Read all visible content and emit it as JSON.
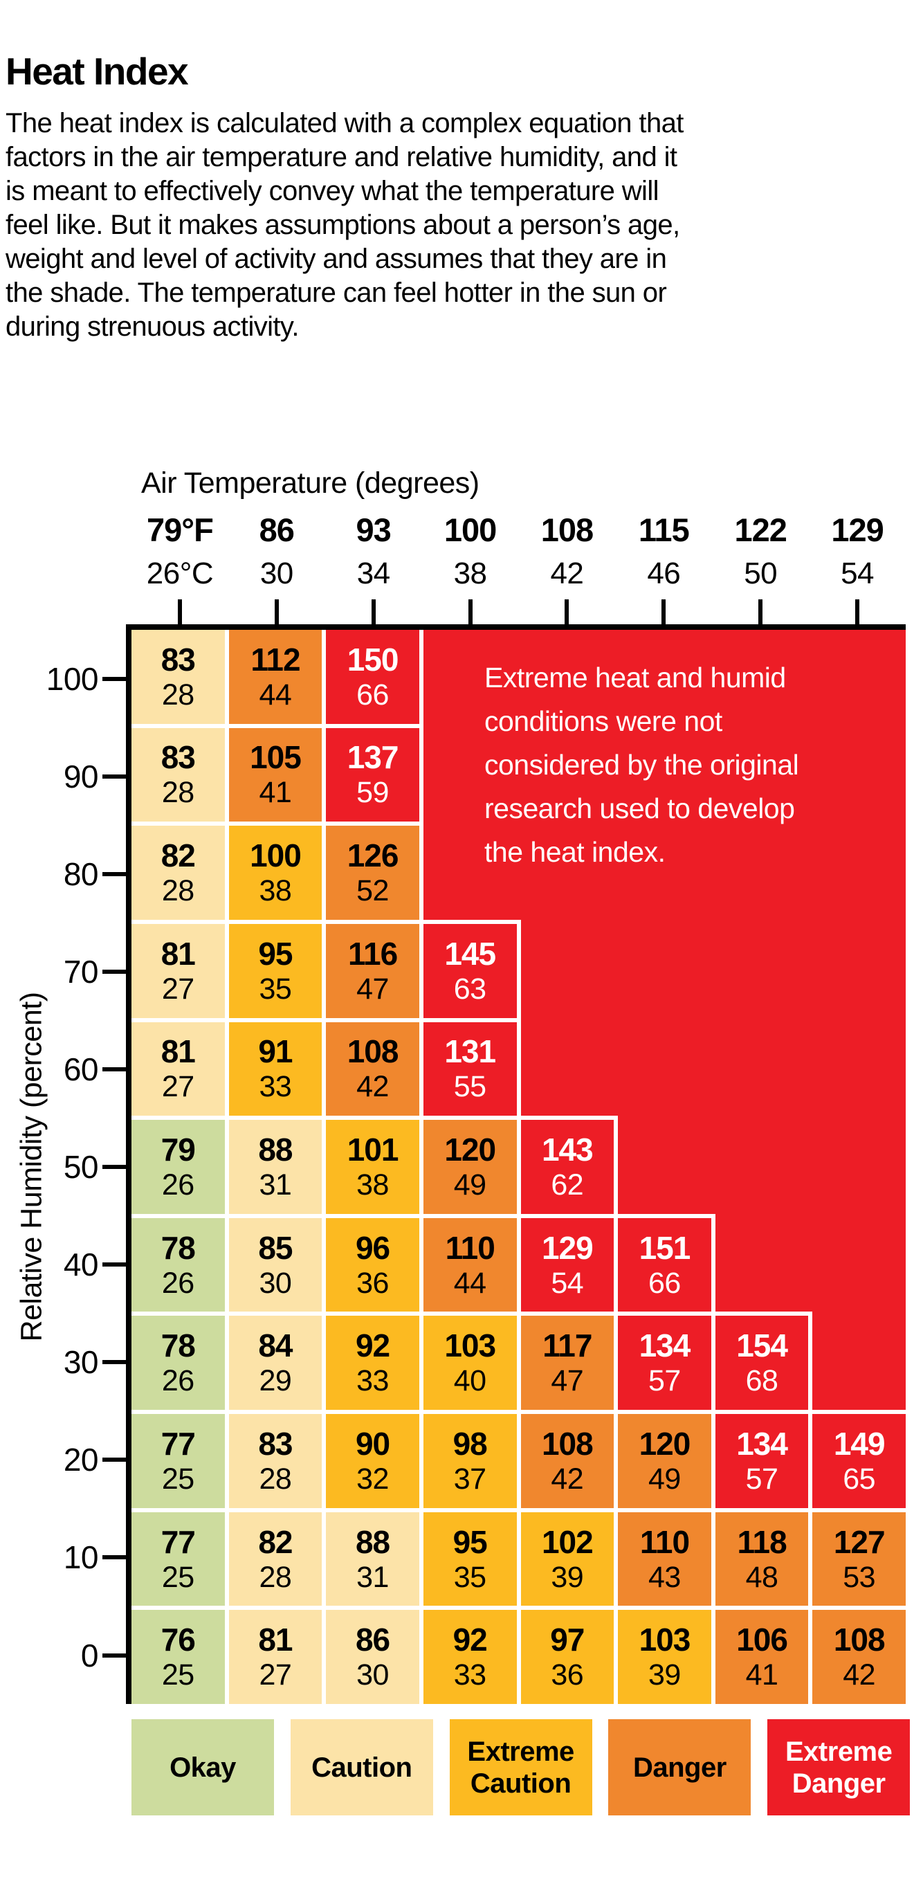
{
  "title": "Heat Index",
  "intro": "The heat index is calculated with a complex equation that\nfactors in the air temperature and relative humidity, and it\nis meant to effectively convey what the temperature will\nfeel like. But it makes assumptions about a person’s age,\nweight and level of activity and assumes that they are in\nthe shade. The temperature can feel hotter in the sun or\nduring strenuous activity.",
  "colors": {
    "okay": "#cddc9e",
    "caution": "#fce3a8",
    "extreme_caution": "#fcba21",
    "danger": "#f0872e",
    "extreme_danger": "#ed1d26",
    "frame": "#000000",
    "note_text": "#ffffff",
    "background": "#ffffff"
  },
  "legend": [
    {
      "label": "Okay",
      "level": "okay"
    },
    {
      "label": "Caution",
      "level": "caution"
    },
    {
      "label": "Extreme Caution",
      "level": "extreme_caution"
    },
    {
      "label": "Danger",
      "level": "danger"
    },
    {
      "label": "Extreme Danger",
      "level": "extreme_danger"
    }
  ],
  "chart_data": {
    "type": "heatmap",
    "title": "Heat Index",
    "xlabel": "Air Temperature (degrees)",
    "ylabel": "Relative Humidity (percent)",
    "x_ticks_f": [
      "79°F",
      "86",
      "93",
      "100",
      "108",
      "115",
      "122",
      "129"
    ],
    "x_ticks_c": [
      "26°C",
      "30",
      "34",
      "38",
      "42",
      "46",
      "50",
      "54"
    ],
    "x_f_values": [
      79,
      86,
      93,
      100,
      108,
      115,
      122,
      129
    ],
    "x_c_values": [
      26,
      30,
      34,
      38,
      42,
      46,
      50,
      54
    ],
    "y_ticks": [
      "100",
      "90",
      "80",
      "70",
      "60",
      "50",
      "40",
      "30",
      "20",
      "10",
      "0"
    ],
    "levels": [
      "okay",
      "caution",
      "extreme_caution",
      "danger",
      "extreme_danger"
    ],
    "annotation": "Extreme heat and humid\nconditions were not\nconsidered by the original\nresearch used to develop\nthe heat index.",
    "rows": [
      {
        "humidity": 100,
        "cells": [
          {
            "f": 83,
            "c": 28,
            "level": "caution"
          },
          {
            "f": 112,
            "c": 44,
            "level": "danger"
          },
          {
            "f": 150,
            "c": 66,
            "level": "extreme_danger"
          }
        ]
      },
      {
        "humidity": 90,
        "cells": [
          {
            "f": 83,
            "c": 28,
            "level": "caution"
          },
          {
            "f": 105,
            "c": 41,
            "level": "danger"
          },
          {
            "f": 137,
            "c": 59,
            "level": "extreme_danger"
          }
        ]
      },
      {
        "humidity": 80,
        "cells": [
          {
            "f": 82,
            "c": 28,
            "level": "caution"
          },
          {
            "f": 100,
            "c": 38,
            "level": "extreme_caution"
          },
          {
            "f": 126,
            "c": 52,
            "level": "danger"
          }
        ]
      },
      {
        "humidity": 70,
        "cells": [
          {
            "f": 81,
            "c": 27,
            "level": "caution"
          },
          {
            "f": 95,
            "c": 35,
            "level": "extreme_caution"
          },
          {
            "f": 116,
            "c": 47,
            "level": "danger"
          },
          {
            "f": 145,
            "c": 63,
            "level": "extreme_danger"
          }
        ]
      },
      {
        "humidity": 60,
        "cells": [
          {
            "f": 81,
            "c": 27,
            "level": "caution"
          },
          {
            "f": 91,
            "c": 33,
            "level": "extreme_caution"
          },
          {
            "f": 108,
            "c": 42,
            "level": "danger"
          },
          {
            "f": 131,
            "c": 55,
            "level": "extreme_danger"
          }
        ]
      },
      {
        "humidity": 50,
        "cells": [
          {
            "f": 79,
            "c": 26,
            "level": "okay"
          },
          {
            "f": 88,
            "c": 31,
            "level": "caution"
          },
          {
            "f": 101,
            "c": 38,
            "level": "extreme_caution"
          },
          {
            "f": 120,
            "c": 49,
            "level": "danger"
          },
          {
            "f": 143,
            "c": 62,
            "level": "extreme_danger"
          }
        ]
      },
      {
        "humidity": 40,
        "cells": [
          {
            "f": 78,
            "c": 26,
            "level": "okay"
          },
          {
            "f": 85,
            "c": 30,
            "level": "caution"
          },
          {
            "f": 96,
            "c": 36,
            "level": "extreme_caution"
          },
          {
            "f": 110,
            "c": 44,
            "level": "danger"
          },
          {
            "f": 129,
            "c": 54,
            "level": "extreme_danger"
          },
          {
            "f": 151,
            "c": 66,
            "level": "extreme_danger"
          }
        ]
      },
      {
        "humidity": 30,
        "cells": [
          {
            "f": 78,
            "c": 26,
            "level": "okay"
          },
          {
            "f": 84,
            "c": 29,
            "level": "caution"
          },
          {
            "f": 92,
            "c": 33,
            "level": "extreme_caution"
          },
          {
            "f": 103,
            "c": 40,
            "level": "extreme_caution"
          },
          {
            "f": 117,
            "c": 47,
            "level": "danger"
          },
          {
            "f": 134,
            "c": 57,
            "level": "extreme_danger"
          },
          {
            "f": 154,
            "c": 68,
            "level": "extreme_danger"
          }
        ]
      },
      {
        "humidity": 20,
        "cells": [
          {
            "f": 77,
            "c": 25,
            "level": "okay"
          },
          {
            "f": 83,
            "c": 28,
            "level": "caution"
          },
          {
            "f": 90,
            "c": 32,
            "level": "extreme_caution"
          },
          {
            "f": 98,
            "c": 37,
            "level": "extreme_caution"
          },
          {
            "f": 108,
            "c": 42,
            "level": "danger"
          },
          {
            "f": 120,
            "c": 49,
            "level": "danger"
          },
          {
            "f": 134,
            "c": 57,
            "level": "extreme_danger"
          },
          {
            "f": 149,
            "c": 65,
            "level": "extreme_danger"
          }
        ]
      },
      {
        "humidity": 10,
        "cells": [
          {
            "f": 77,
            "c": 25,
            "level": "okay"
          },
          {
            "f": 82,
            "c": 28,
            "level": "caution"
          },
          {
            "f": 88,
            "c": 31,
            "level": "caution"
          },
          {
            "f": 95,
            "c": 35,
            "level": "extreme_caution"
          },
          {
            "f": 102,
            "c": 39,
            "level": "extreme_caution"
          },
          {
            "f": 110,
            "c": 43,
            "level": "danger"
          },
          {
            "f": 118,
            "c": 48,
            "level": "danger"
          },
          {
            "f": 127,
            "c": 53,
            "level": "danger"
          }
        ]
      },
      {
        "humidity": 0,
        "cells": [
          {
            "f": 76,
            "c": 25,
            "level": "okay"
          },
          {
            "f": 81,
            "c": 27,
            "level": "caution"
          },
          {
            "f": 86,
            "c": 30,
            "level": "caution"
          },
          {
            "f": 92,
            "c": 33,
            "level": "extreme_caution"
          },
          {
            "f": 97,
            "c": 36,
            "level": "extreme_caution"
          },
          {
            "f": 103,
            "c": 39,
            "level": "extreme_caution"
          },
          {
            "f": 106,
            "c": 41,
            "level": "danger"
          },
          {
            "f": 108,
            "c": 42,
            "level": "danger"
          }
        ]
      }
    ]
  }
}
